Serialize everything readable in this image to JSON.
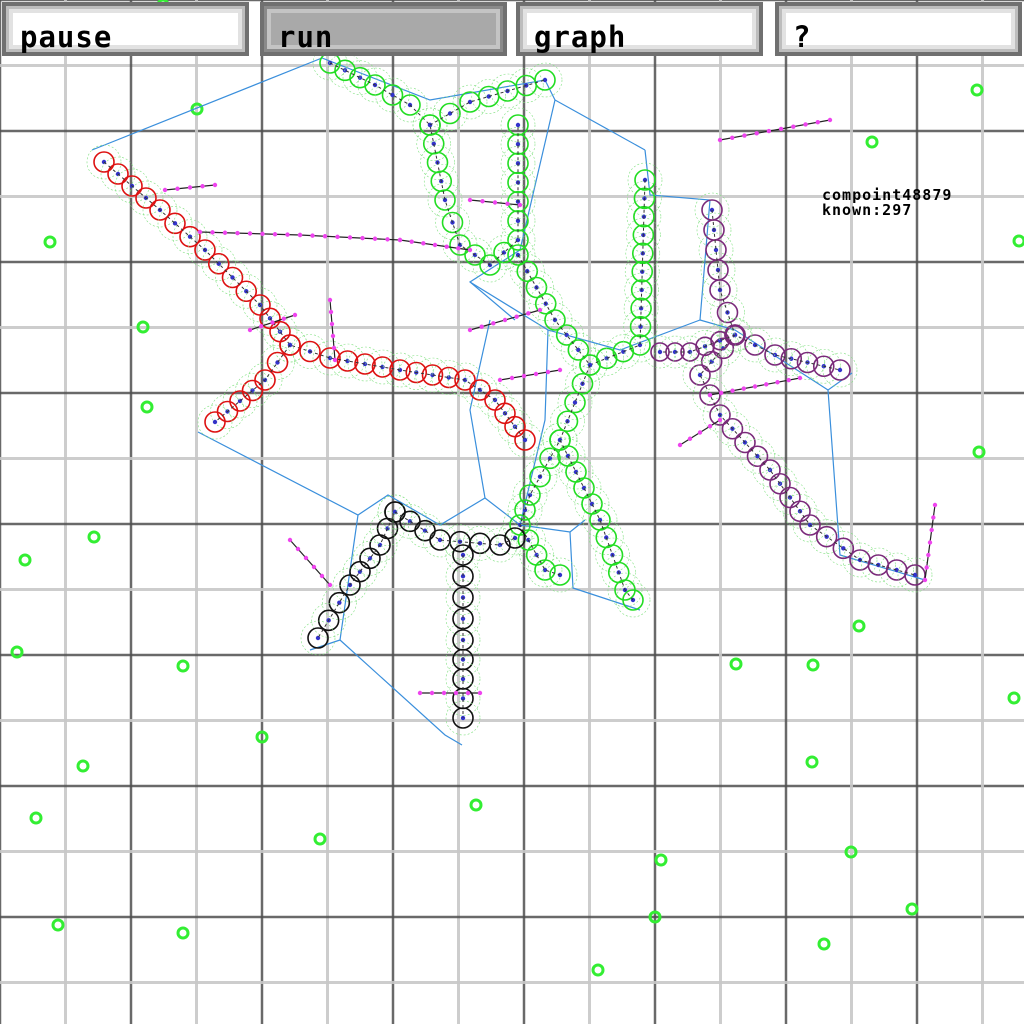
{
  "toolbar": {
    "pause_label": "pause",
    "run_label": "run",
    "graph_label": "graph",
    "help_label": "?"
  },
  "stats": {
    "compoint": "compoint48879",
    "known": "known:297"
  },
  "colors": {
    "grid_major": "#505050",
    "grid_minor": "#c8c8c8",
    "link": "#3a8fdc",
    "food": "#33ee33",
    "cell_green": "#22dd22",
    "cell_red": "#dd1111",
    "cell_purple": "#7a2a7a",
    "cell_black": "#111111",
    "node": "#ee44ee",
    "dot": "#3333cc"
  }
}
